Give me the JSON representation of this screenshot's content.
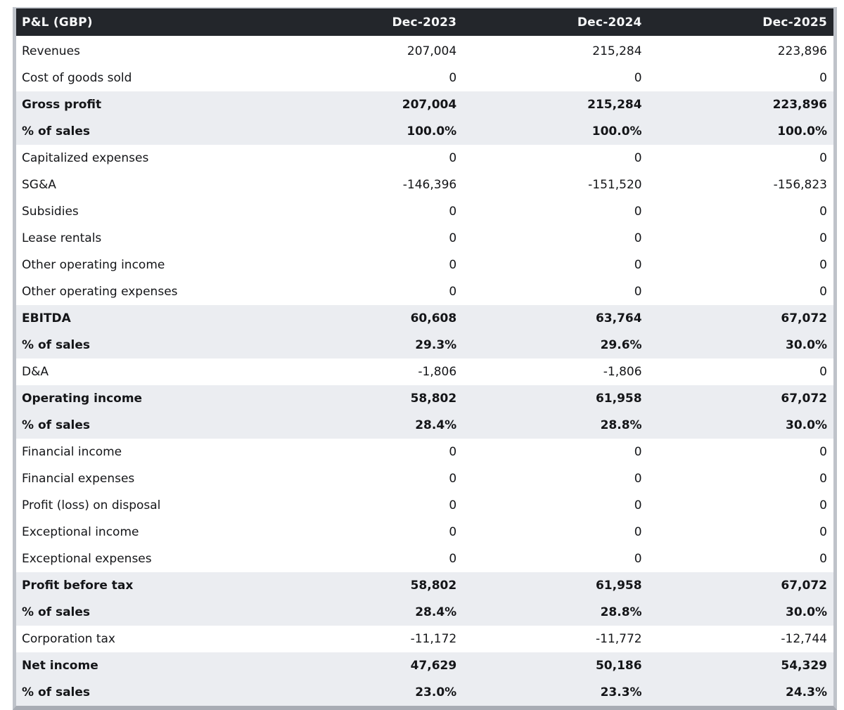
{
  "table": {
    "title": "P&L (GBP)",
    "columns": [
      "Dec-2023",
      "Dec-2024",
      "Dec-2025"
    ],
    "rows": [
      {
        "label": "Revenues",
        "values": [
          "207,004",
          "215,284",
          "223,896"
        ],
        "style": "normal"
      },
      {
        "label": "Cost of goods sold",
        "values": [
          "0",
          "0",
          "0"
        ],
        "style": "normal"
      },
      {
        "label": "Gross profit",
        "values": [
          "207,004",
          "215,284",
          "223,896"
        ],
        "style": "subtotal"
      },
      {
        "label": "% of sales",
        "values": [
          "100.0%",
          "100.0%",
          "100.0%"
        ],
        "style": "subtotal"
      },
      {
        "label": "Capitalized expenses",
        "values": [
          "0",
          "0",
          "0"
        ],
        "style": "normal"
      },
      {
        "label": "SG&A",
        "values": [
          "-146,396",
          "-151,520",
          "-156,823"
        ],
        "style": "normal"
      },
      {
        "label": "Subsidies",
        "values": [
          "0",
          "0",
          "0"
        ],
        "style": "normal"
      },
      {
        "label": "Lease rentals",
        "values": [
          "0",
          "0",
          "0"
        ],
        "style": "normal"
      },
      {
        "label": "Other operating income",
        "values": [
          "0",
          "0",
          "0"
        ],
        "style": "normal"
      },
      {
        "label": "Other operating expenses",
        "values": [
          "0",
          "0",
          "0"
        ],
        "style": "normal"
      },
      {
        "label": "EBITDA",
        "values": [
          "60,608",
          "63,764",
          "67,072"
        ],
        "style": "subtotal"
      },
      {
        "label": "% of sales",
        "values": [
          "29.3%",
          "29.6%",
          "30.0%"
        ],
        "style": "subtotal"
      },
      {
        "label": "D&A",
        "values": [
          "-1,806",
          "-1,806",
          "0"
        ],
        "style": "normal"
      },
      {
        "label": "Operating income",
        "values": [
          "58,802",
          "61,958",
          "67,072"
        ],
        "style": "subtotal"
      },
      {
        "label": "% of sales",
        "values": [
          "28.4%",
          "28.8%",
          "30.0%"
        ],
        "style": "subtotal"
      },
      {
        "label": "Financial income",
        "values": [
          "0",
          "0",
          "0"
        ],
        "style": "normal"
      },
      {
        "label": "Financial expenses",
        "values": [
          "0",
          "0",
          "0"
        ],
        "style": "normal"
      },
      {
        "label": "Profit (loss) on disposal",
        "values": [
          "0",
          "0",
          "0"
        ],
        "style": "normal"
      },
      {
        "label": "Exceptional income",
        "values": [
          "0",
          "0",
          "0"
        ],
        "style": "normal"
      },
      {
        "label": "Exceptional expenses",
        "values": [
          "0",
          "0",
          "0"
        ],
        "style": "normal"
      },
      {
        "label": "Profit before tax",
        "values": [
          "58,802",
          "61,958",
          "67,072"
        ],
        "style": "subtotal"
      },
      {
        "label": "% of sales",
        "values": [
          "28.4%",
          "28.8%",
          "30.0%"
        ],
        "style": "subtotal"
      },
      {
        "label": "Corporation tax",
        "values": [
          "-11,172",
          "-11,772",
          "-12,744"
        ],
        "style": "normal"
      },
      {
        "label": "Net income",
        "values": [
          "47,629",
          "50,186",
          "54,329"
        ],
        "style": "subtotal"
      },
      {
        "label": "% of sales",
        "values": [
          "23.0%",
          "23.3%",
          "24.3%"
        ],
        "style": "subtotal"
      }
    ],
    "colors": {
      "header_bg": "#23262b",
      "header_text": "#f7f8f9",
      "subtotal_bg": "#ebedf1",
      "row_bg": "#ffffff",
      "text": "#141518",
      "border": "#bfc3ca",
      "border_bottom": "#a8acb4"
    }
  },
  "chart_data": {
    "type": "table",
    "title": "P&L (GBP)",
    "columns": [
      "P&L (GBP)",
      "Dec-2023",
      "Dec-2024",
      "Dec-2025"
    ],
    "rows": [
      [
        "Revenues",
        207004,
        215284,
        223896
      ],
      [
        "Cost of goods sold",
        0,
        0,
        0
      ],
      [
        "Gross profit",
        207004,
        215284,
        223896
      ],
      [
        "% of sales",
        "100.0%",
        "100.0%",
        "100.0%"
      ],
      [
        "Capitalized expenses",
        0,
        0,
        0
      ],
      [
        "SG&A",
        -146396,
        -151520,
        -156823
      ],
      [
        "Subsidies",
        0,
        0,
        0
      ],
      [
        "Lease rentals",
        0,
        0,
        0
      ],
      [
        "Other operating income",
        0,
        0,
        0
      ],
      [
        "Other operating expenses",
        0,
        0,
        0
      ],
      [
        "EBITDA",
        60608,
        63764,
        67072
      ],
      [
        "% of sales",
        "29.3%",
        "29.6%",
        "30.0%"
      ],
      [
        "D&A",
        -1806,
        -1806,
        0
      ],
      [
        "Operating income",
        58802,
        61958,
        67072
      ],
      [
        "% of sales",
        "28.4%",
        "28.8%",
        "30.0%"
      ],
      [
        "Financial income",
        0,
        0,
        0
      ],
      [
        "Financial expenses",
        0,
        0,
        0
      ],
      [
        "Profit (loss) on disposal",
        0,
        0,
        0
      ],
      [
        "Exceptional income",
        0,
        0,
        0
      ],
      [
        "Exceptional expenses",
        0,
        0,
        0
      ],
      [
        "Profit before tax",
        58802,
        61958,
        67072
      ],
      [
        "% of sales",
        "28.4%",
        "28.8%",
        "30.0%"
      ],
      [
        "Corporation tax",
        -11172,
        -11772,
        -12744
      ],
      [
        "Net income",
        47629,
        50186,
        54329
      ],
      [
        "% of sales",
        "23.0%",
        "23.3%",
        "24.3%"
      ]
    ]
  }
}
